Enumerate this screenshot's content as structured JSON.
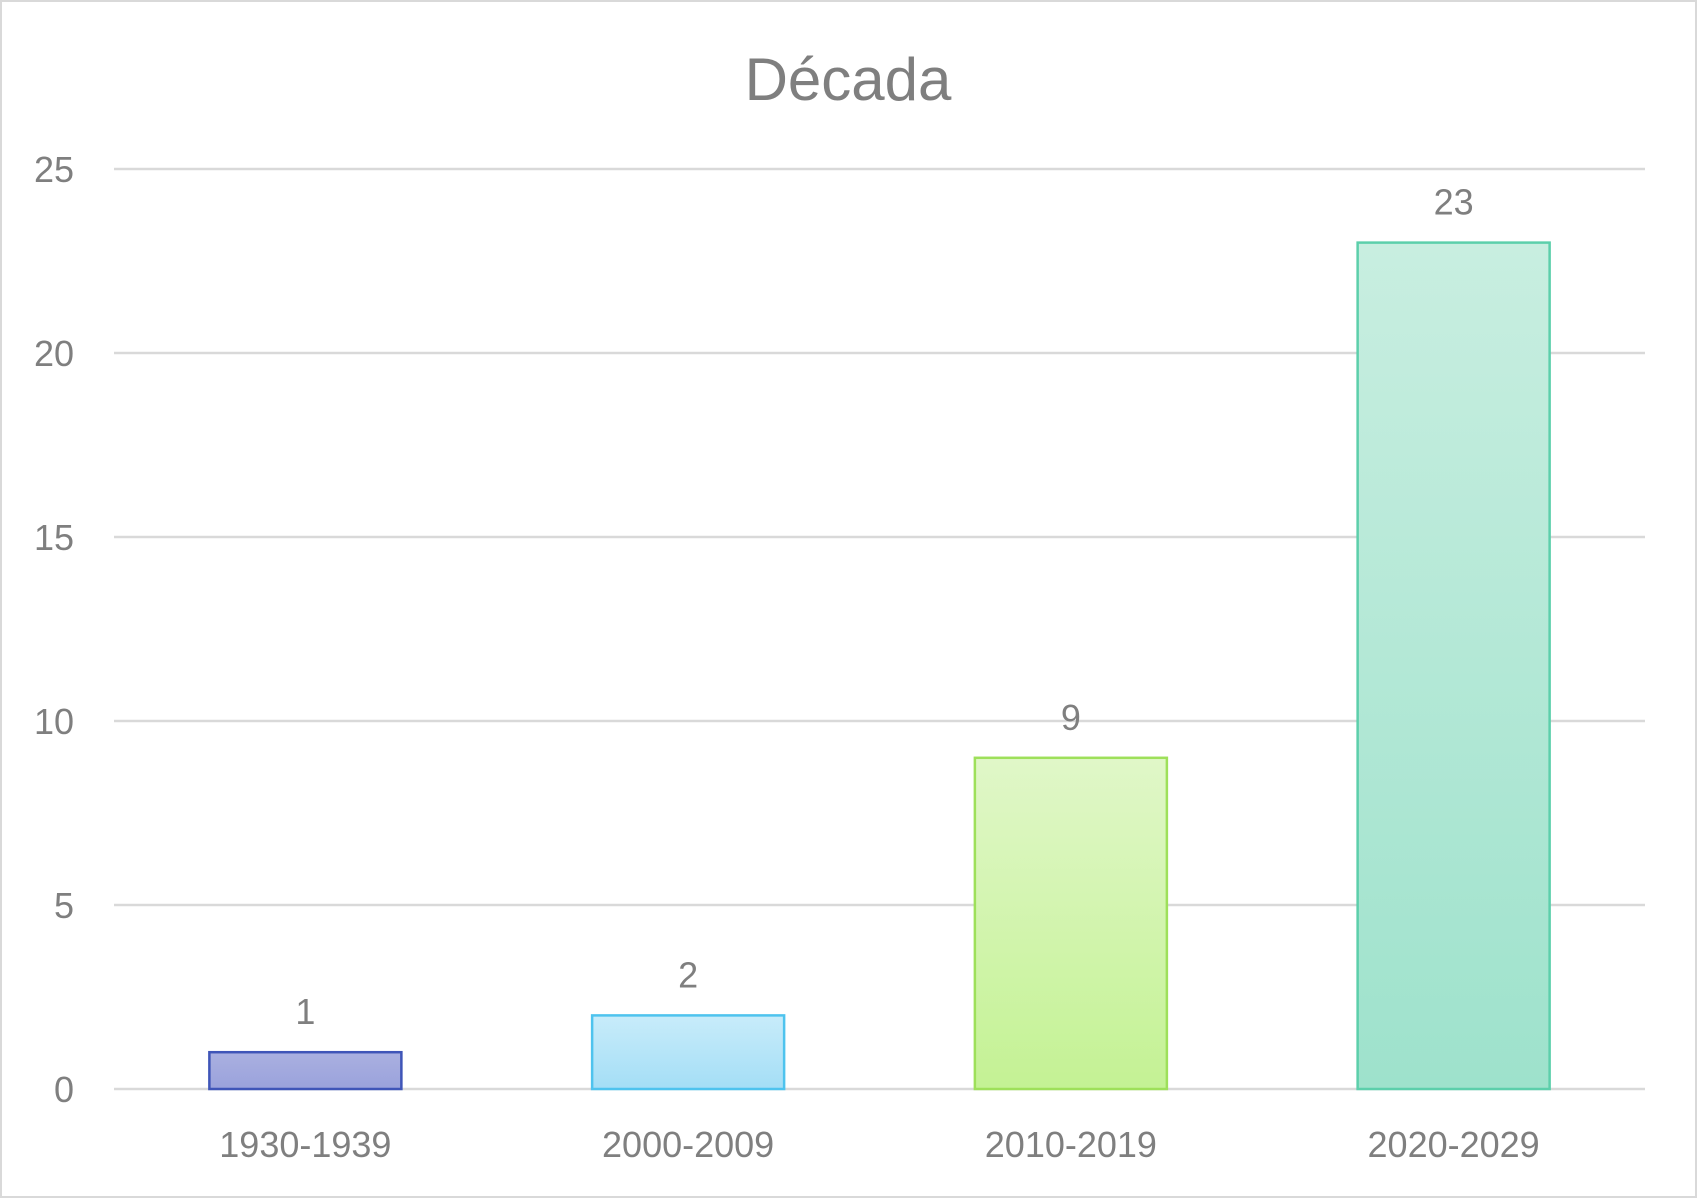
{
  "chart_data": {
    "type": "bar",
    "title": "Década",
    "categories": [
      "1930-1939",
      "2000-2009",
      "2010-2019",
      "2020-2029"
    ],
    "values": [
      1,
      2,
      9,
      23
    ],
    "data_labels": [
      "1",
      "2",
      "9",
      "23"
    ],
    "xlabel": "",
    "ylabel": "",
    "ylim": [
      0,
      25
    ],
    "yticks": [
      0,
      5,
      10,
      15,
      20,
      25
    ],
    "grid": true,
    "legend": "none",
    "bar_colors": [
      {
        "top": "#aab0e0",
        "bottom": "#9aa2dc",
        "stroke": "#3f55b8"
      },
      {
        "top": "#c8ecfa",
        "bottom": "#a4def6",
        "stroke": "#4ec3ee"
      },
      {
        "top": "#e0f7c8",
        "bottom": "#c4f294",
        "stroke": "#9ee05a"
      },
      {
        "top": "#c8eee0",
        "bottom": "#9ee2cc",
        "stroke": "#5ccfab"
      }
    ]
  }
}
